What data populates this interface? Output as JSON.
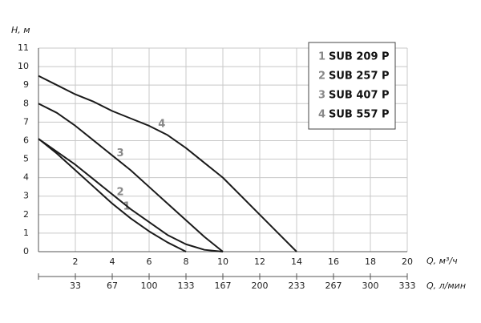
{
  "chart_data": {
    "type": "line",
    "ylabel": "H, м",
    "xlabel": "Q, м³/ч",
    "x2label": "Q, л/мин",
    "xlim": [
      0,
      20
    ],
    "ylim": [
      0,
      11
    ],
    "xticks": [
      2,
      4,
      6,
      8,
      10,
      12,
      14,
      16,
      18,
      20
    ],
    "yticks": [
      0,
      1,
      2,
      3,
      4,
      5,
      6,
      7,
      8,
      9,
      10,
      11
    ],
    "x2ticks": [
      {
        "value": 2,
        "label": "33"
      },
      {
        "value": 4,
        "label": "67"
      },
      {
        "value": 6,
        "label": "100"
      },
      {
        "value": 8,
        "label": "133"
      },
      {
        "value": 10,
        "label": "167"
      },
      {
        "value": 12,
        "label": "200"
      },
      {
        "value": 14,
        "label": "233"
      },
      {
        "value": 16,
        "label": "267"
      },
      {
        "value": 18,
        "label": "300"
      },
      {
        "value": 20,
        "label": "333"
      }
    ],
    "grid": true,
    "legend": "upper right",
    "series": [
      {
        "name": "SUB 209 P",
        "label": "1",
        "color": "#1a1a1a",
        "x": [
          0,
          1,
          2,
          3,
          4,
          5,
          6,
          7,
          8
        ],
        "values": [
          6.1,
          5.3,
          4.4,
          3.5,
          2.6,
          1.8,
          1.1,
          0.5,
          0
        ]
      },
      {
        "name": "SUB 257 P",
        "label": "2",
        "color": "#1a1a1a",
        "x": [
          0,
          1,
          2,
          3,
          4,
          5,
          6,
          7,
          8,
          9,
          10
        ],
        "values": [
          6.1,
          5.4,
          4.7,
          3.9,
          3.1,
          2.3,
          1.6,
          0.9,
          0.4,
          0.1,
          0
        ]
      },
      {
        "name": "SUB 407 P",
        "label": "3",
        "color": "#1a1a1a",
        "x": [
          0,
          1,
          2,
          3,
          4,
          5,
          6,
          7,
          8,
          9,
          10
        ],
        "values": [
          8.0,
          7.5,
          6.8,
          6.0,
          5.2,
          4.4,
          3.5,
          2.6,
          1.7,
          0.8,
          0
        ]
      },
      {
        "name": "SUB 557 P",
        "label": "4",
        "color": "#1a1a1a",
        "x": [
          0,
          1,
          2,
          3,
          4,
          5,
          6,
          7,
          8,
          9,
          10,
          11,
          12,
          13,
          14
        ],
        "values": [
          9.5,
          9.0,
          8.5,
          8.1,
          7.6,
          7.2,
          6.8,
          6.3,
          5.6,
          4.8,
          4.0,
          3.0,
          2.0,
          1.0,
          0
        ]
      }
    ]
  }
}
